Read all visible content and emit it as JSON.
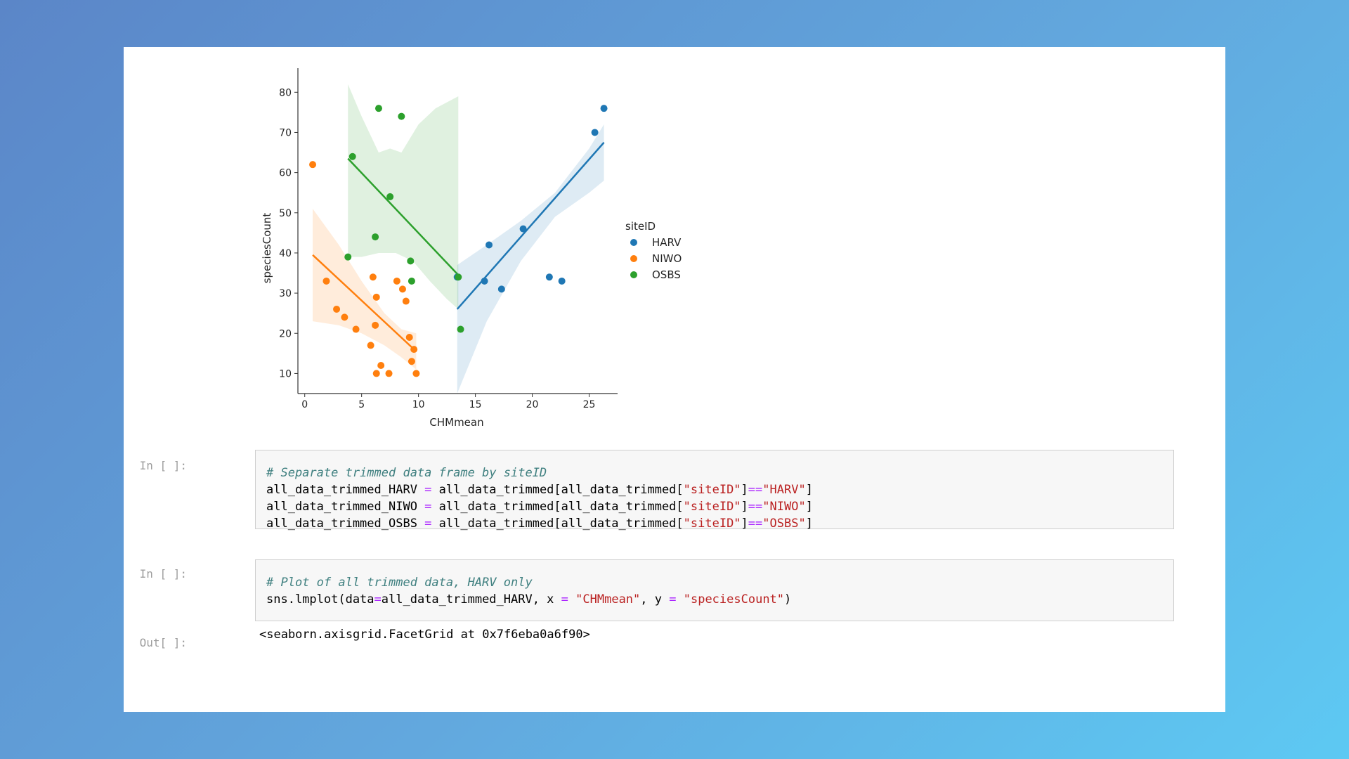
{
  "chart_data": {
    "type": "scatter",
    "xlabel": "CHMmean",
    "ylabel": "speciesCount",
    "xlim": [
      -0.6,
      27.5
    ],
    "ylim": [
      5,
      86
    ],
    "xticks": [
      0,
      5,
      10,
      15,
      20,
      25
    ],
    "yticks": [
      10,
      20,
      30,
      40,
      50,
      60,
      70,
      80
    ],
    "legend": {
      "title": "siteID",
      "placement": "right"
    },
    "series": [
      {
        "name": "HARV",
        "color": "#1f77b4",
        "points": [
          [
            13.4,
            34
          ],
          [
            15.8,
            33
          ],
          [
            16.2,
            42
          ],
          [
            17.3,
            31
          ],
          [
            19.2,
            46
          ],
          [
            21.5,
            34
          ],
          [
            22.6,
            33
          ],
          [
            25.5,
            70
          ],
          [
            26.3,
            76
          ]
        ],
        "fit": [
          [
            13.4,
            26
          ],
          [
            26.3,
            67.5
          ]
        ],
        "band_upper": [
          [
            13.4,
            37
          ],
          [
            16,
            42
          ],
          [
            19,
            48
          ],
          [
            22,
            55
          ],
          [
            25,
            66
          ],
          [
            26.3,
            72
          ]
        ],
        "band_lower": [
          [
            13.4,
            5
          ],
          [
            16,
            23
          ],
          [
            19,
            38
          ],
          [
            22,
            49
          ],
          [
            25,
            55
          ],
          [
            26.3,
            58
          ]
        ]
      },
      {
        "name": "NIWO",
        "color": "#ff7f0e",
        "points": [
          [
            0.7,
            62
          ],
          [
            1.9,
            33
          ],
          [
            2.8,
            26
          ],
          [
            3.5,
            24
          ],
          [
            4.5,
            21
          ],
          [
            5.8,
            17
          ],
          [
            6.0,
            34
          ],
          [
            6.2,
            22
          ],
          [
            6.3,
            29
          ],
          [
            6.3,
            10
          ],
          [
            6.7,
            12
          ],
          [
            7.4,
            10
          ],
          [
            8.1,
            33
          ],
          [
            8.6,
            31
          ],
          [
            8.9,
            28
          ],
          [
            9.2,
            19
          ],
          [
            9.4,
            13
          ],
          [
            9.6,
            16
          ],
          [
            9.8,
            10
          ]
        ],
        "fit": [
          [
            0.7,
            39.5
          ],
          [
            9.8,
            15.5
          ]
        ],
        "band_upper": [
          [
            0.7,
            51
          ],
          [
            3,
            42
          ],
          [
            5,
            33
          ],
          [
            7,
            25
          ],
          [
            8.5,
            21
          ],
          [
            9.8,
            20
          ]
        ],
        "band_lower": [
          [
            0.7,
            23
          ],
          [
            3,
            22
          ],
          [
            5,
            20
          ],
          [
            7,
            17
          ],
          [
            8.5,
            14
          ],
          [
            9.8,
            11
          ]
        ]
      },
      {
        "name": "OSBS",
        "color": "#2ca02c",
        "points": [
          [
            3.8,
            39
          ],
          [
            4.2,
            64
          ],
          [
            6.2,
            44
          ],
          [
            6.5,
            76
          ],
          [
            7.5,
            54
          ],
          [
            8.5,
            74
          ],
          [
            9.3,
            38
          ],
          [
            9.4,
            33
          ],
          [
            13.5,
            34
          ],
          [
            13.7,
            21
          ]
        ],
        "fit": [
          [
            3.8,
            63.5
          ],
          [
            13.5,
            34.5
          ]
        ],
        "band_upper": [
          [
            3.8,
            82
          ],
          [
            5,
            74
          ],
          [
            6.5,
            65
          ],
          [
            7.5,
            66
          ],
          [
            8.5,
            65
          ],
          [
            10,
            72
          ],
          [
            11.5,
            76
          ],
          [
            13.5,
            79
          ]
        ],
        "band_lower": [
          [
            3.8,
            39
          ],
          [
            5,
            39
          ],
          [
            6.5,
            40
          ],
          [
            8,
            40
          ],
          [
            9.5,
            38
          ],
          [
            11,
            33
          ],
          [
            12.5,
            28.5
          ],
          [
            13.5,
            26
          ]
        ]
      }
    ]
  },
  "cells": [
    {
      "prompt": "In [ ]:",
      "lines": [
        [
          {
            "t": "# Separate trimmed data frame by siteID",
            "c": "cm"
          }
        ],
        [
          {
            "t": "all_data_trimmed_HARV "
          },
          {
            "t": "=",
            "c": "op"
          },
          {
            "t": " all_data_trimmed[all_data_trimmed["
          },
          {
            "t": "\"siteID\"",
            "c": "st"
          },
          {
            "t": "]"
          },
          {
            "t": "==",
            "c": "op"
          },
          {
            "t": "\"HARV\"",
            "c": "st"
          },
          {
            "t": "]"
          }
        ],
        [
          {
            "t": "all_data_trimmed_NIWO "
          },
          {
            "t": "=",
            "c": "op"
          },
          {
            "t": " all_data_trimmed[all_data_trimmed["
          },
          {
            "t": "\"siteID\"",
            "c": "st"
          },
          {
            "t": "]"
          },
          {
            "t": "==",
            "c": "op"
          },
          {
            "t": "\"NIWO\"",
            "c": "st"
          },
          {
            "t": "]"
          }
        ],
        [
          {
            "t": "all_data_trimmed_OSBS "
          },
          {
            "t": "=",
            "c": "op"
          },
          {
            "t": " all_data_trimmed[all_data_trimmed["
          },
          {
            "t": "\"siteID\"",
            "c": "st"
          },
          {
            "t": "]"
          },
          {
            "t": "==",
            "c": "op"
          },
          {
            "t": "\"OSBS\"",
            "c": "st"
          },
          {
            "t": "]"
          }
        ]
      ]
    },
    {
      "prompt": "In [ ]:",
      "lines": [
        [
          {
            "t": "# Plot of all trimmed data, HARV only",
            "c": "cm"
          }
        ],
        [
          {
            "t": "sns.lmplot(data"
          },
          {
            "t": "=",
            "c": "op"
          },
          {
            "t": "all_data_trimmed_HARV, x "
          },
          {
            "t": "=",
            "c": "op"
          },
          {
            "t": " "
          },
          {
            "t": "\"CHMmean\"",
            "c": "st"
          },
          {
            "t": ", y "
          },
          {
            "t": "=",
            "c": "op"
          },
          {
            "t": " "
          },
          {
            "t": "\"speciesCount\"",
            "c": "st"
          },
          {
            "t": ")"
          }
        ]
      ]
    }
  ],
  "output": {
    "prompt": "Out[ ]:",
    "text": "<seaborn.axisgrid.FacetGrid at 0x7f6eba0a6f90>"
  }
}
